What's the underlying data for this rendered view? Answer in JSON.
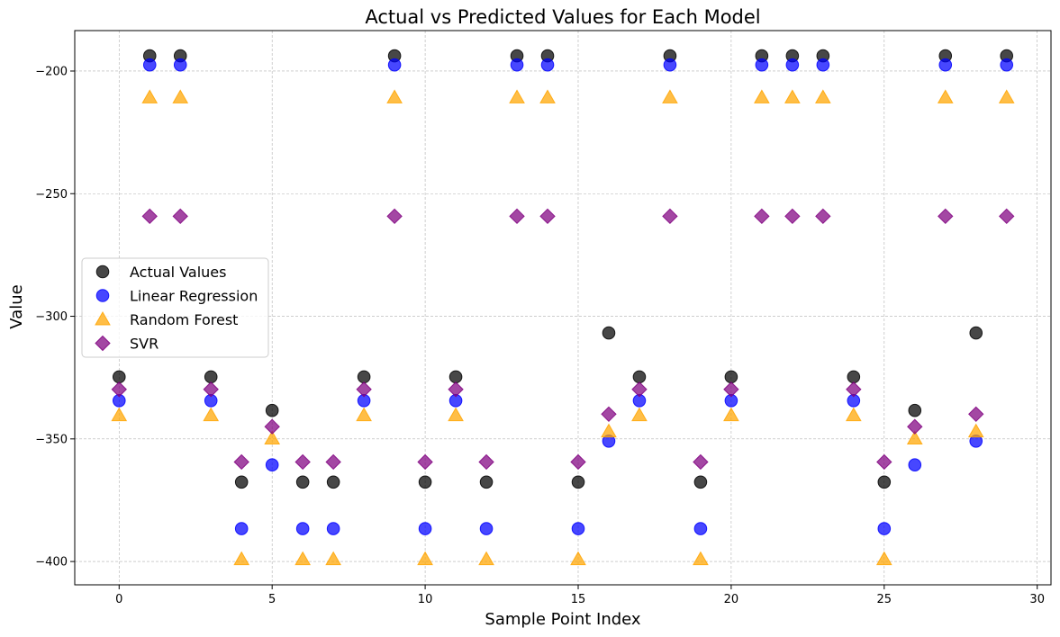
{
  "chart_data": {
    "type": "scatter",
    "title": "Actual vs Predicted Values for Each Model",
    "xlabel": "Sample Point Index",
    "ylabel": "Value",
    "xlim": [
      -1.45,
      30.45
    ],
    "ylim": [
      -409.5,
      -183.5
    ],
    "xticks": [
      0,
      5,
      10,
      15,
      20,
      25,
      30
    ],
    "yticks": [
      -400,
      -350,
      -300,
      -250,
      -200
    ],
    "grid": true,
    "legend_position": "center-left",
    "x": [
      0,
      1,
      2,
      3,
      4,
      5,
      6,
      7,
      8,
      9,
      10,
      11,
      12,
      13,
      14,
      15,
      16,
      17,
      18,
      19,
      20,
      21,
      22,
      23,
      24,
      25,
      26,
      27,
      28,
      29
    ],
    "series": [
      {
        "name": "Actual Values",
        "marker": "circle",
        "color": "#000000",
        "values": [
          -324.7,
          -193.8,
          -193.8,
          -324.7,
          -367.6,
          -338.4,
          -367.6,
          -367.6,
          -324.7,
          -193.8,
          -367.6,
          -324.7,
          -367.6,
          -193.8,
          -193.8,
          -367.6,
          -306.8,
          -324.7,
          -193.8,
          -367.6,
          -324.7,
          -193.8,
          -193.8,
          -193.8,
          -324.7,
          -367.6,
          -338.4,
          -193.8,
          -306.8,
          -193.8
        ]
      },
      {
        "name": "Linear Regression",
        "marker": "circle",
        "color": "#0000ff",
        "values": [
          -334.4,
          -197.5,
          -197.5,
          -334.4,
          -386.6,
          -360.6,
          -386.6,
          -386.6,
          -334.4,
          -197.5,
          -386.6,
          -334.4,
          -386.6,
          -197.5,
          -197.5,
          -386.6,
          -350.9,
          -334.4,
          -197.5,
          -386.6,
          -334.4,
          -197.5,
          -197.5,
          -197.5,
          -334.4,
          -386.6,
          -360.6,
          -197.5,
          -350.9,
          -197.5
        ]
      },
      {
        "name": "Random Forest",
        "marker": "triangle",
        "color": "#ffa500",
        "values": [
          -340.4,
          -210.8,
          -210.8,
          -340.4,
          -399.1,
          -349.9,
          -399.1,
          -399.1,
          -340.4,
          -210.8,
          -399.1,
          -340.4,
          -399.1,
          -210.8,
          -210.8,
          -399.1,
          -347.0,
          -340.4,
          -210.8,
          -399.1,
          -340.4,
          -210.8,
          -210.8,
          -210.8,
          -340.4,
          -399.1,
          -349.9,
          -210.8,
          -347.0,
          -210.8
        ]
      },
      {
        "name": "SVR",
        "marker": "diamond",
        "color": "#800080",
        "values": [
          -329.8,
          -259.2,
          -259.2,
          -329.8,
          -359.4,
          -345.0,
          -359.4,
          -359.4,
          -329.8,
          -259.2,
          -359.4,
          -329.8,
          -359.4,
          -259.2,
          -259.2,
          -359.4,
          -339.9,
          -329.8,
          -259.2,
          -359.4,
          -329.8,
          -259.2,
          -259.2,
          -259.2,
          -329.8,
          -359.4,
          -345.0,
          -259.2,
          -339.9,
          -259.2
        ]
      }
    ]
  }
}
